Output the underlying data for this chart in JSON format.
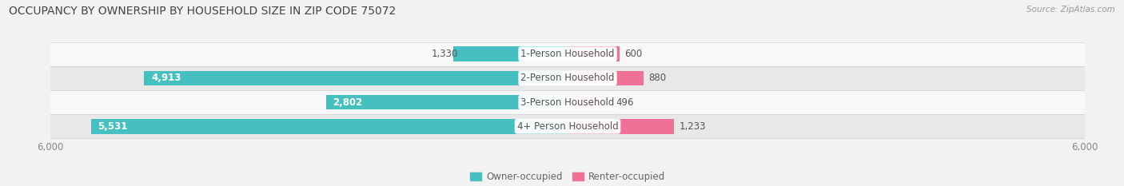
{
  "title": "OCCUPANCY BY OWNERSHIP BY HOUSEHOLD SIZE IN ZIP CODE 75072",
  "source": "Source: ZipAtlas.com",
  "categories": [
    "1-Person Household",
    "2-Person Household",
    "3-Person Household",
    "4+ Person Household"
  ],
  "owner_values": [
    1330,
    4913,
    2802,
    5531
  ],
  "renter_values": [
    600,
    880,
    496,
    1233
  ],
  "owner_color": "#45BFBF",
  "renter_color": "#F07098",
  "bg_color": "#f2f2f2",
  "max_val": 6000,
  "label_fontsize": 8.5,
  "title_fontsize": 10,
  "bar_height": 0.62,
  "row_bg_colors": [
    "#f8f8f8",
    "#e8e8e8",
    "#f8f8f8",
    "#e8e8e8"
  ],
  "tick_label_color": "#888888",
  "text_dark": "#555555",
  "text_white": "#ffffff"
}
